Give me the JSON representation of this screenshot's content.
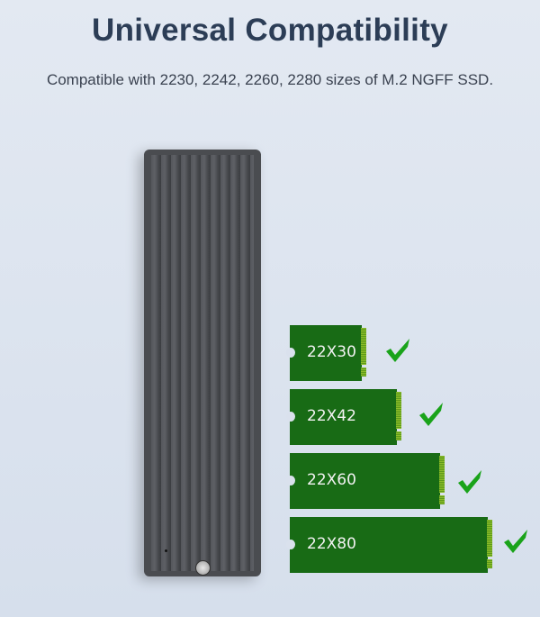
{
  "header": {
    "title": "Universal Compatibility",
    "subtitle": "Compatible with 2230, 2242, 2260, 2280 sizes of M.2 NGFF SSD."
  },
  "cards": [
    {
      "label": "22X30",
      "supported": true
    },
    {
      "label": "22X42",
      "supported": true
    },
    {
      "label": "22X60",
      "supported": true
    },
    {
      "label": "22X80",
      "supported": true
    }
  ],
  "colors": {
    "card": "#186b15",
    "check": "#1aa31a",
    "title": "#2c3d56",
    "enclosure": "#4a4c50"
  },
  "icons": {
    "check": "checkmark-icon"
  }
}
